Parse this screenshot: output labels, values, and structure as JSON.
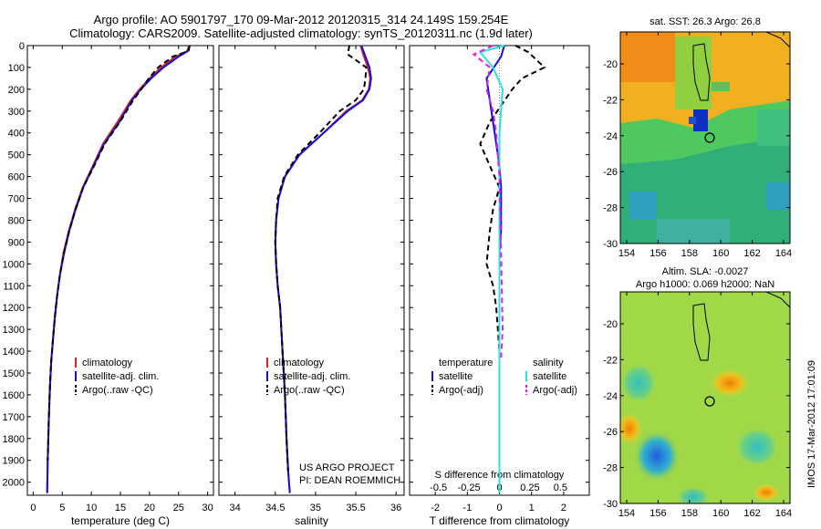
{
  "title": {
    "line1": "Argo profile: AO 5901797_170 09-Mar-2012 20120315_314 24.149S 159.254E",
    "line2": "Climatology: CARS2009. Satellite-adjusted climatology: synTS_20120311.nc (1.9d later)"
  },
  "colors": {
    "climatology": "#e02020",
    "satellite": "#1010e0",
    "argo": "#000000",
    "salinity_satellite": "#30e0e0",
    "salinity_argo": "#e020e0"
  },
  "y_axis": {
    "ticks": [
      "0",
      "100",
      "200",
      "300",
      "400",
      "500",
      "600",
      "700",
      "800",
      "900",
      "1000",
      "1100",
      "1200",
      "1300",
      "1400",
      "1500",
      "1600",
      "1700",
      "1800",
      "1900",
      "2000"
    ],
    "ylim": [
      0,
      2060
    ]
  },
  "chart_data": [
    {
      "type": "line",
      "xlabel": "temperature (deg C)",
      "xlim": [
        -1,
        31
      ],
      "xticks": [
        "0",
        "5",
        "10",
        "15",
        "20",
        "25",
        "30"
      ],
      "xtick_values": [
        0,
        5,
        10,
        15,
        20,
        25,
        30
      ],
      "legend": [
        "climatology",
        "satellite-adj. clim.",
        "Argo(..raw -QC)"
      ],
      "legend_location": "lower-center",
      "series": [
        {
          "name": "climatology",
          "color": "#e02020",
          "x": [
            26.8,
            26.5,
            24.5,
            22.0,
            20.0,
            18.3,
            16.8,
            14.5,
            12.0,
            10.3,
            8.5,
            7.2,
            6.1,
            5.2,
            4.6,
            4.1,
            3.7,
            3.4,
            3.1,
            2.9,
            2.7,
            2.5,
            2.4
          ],
          "y": [
            0,
            25,
            50,
            100,
            150,
            200,
            250,
            350,
            450,
            550,
            650,
            750,
            850,
            950,
            1050,
            1150,
            1250,
            1350,
            1450,
            1550,
            1700,
            1900,
            2050
          ]
        },
        {
          "name": "satellite-adj. clim.",
          "color": "#1010e0",
          "x": [
            26.9,
            26.6,
            25.0,
            22.4,
            20.3,
            18.5,
            17.0,
            14.8,
            12.2,
            10.4,
            8.6,
            7.3,
            6.2,
            5.3,
            4.6,
            4.1,
            3.7,
            3.4,
            3.1,
            2.9,
            2.7,
            2.5,
            2.4
          ],
          "y": [
            0,
            25,
            50,
            100,
            150,
            200,
            250,
            350,
            450,
            550,
            650,
            750,
            850,
            950,
            1050,
            1150,
            1250,
            1350,
            1450,
            1550,
            1700,
            1900,
            2050
          ]
        },
        {
          "name": "Argo(..raw -QC)",
          "color": "#000000",
          "x": [
            26.9,
            26.7,
            24.0,
            21.5,
            19.9,
            18.6,
            17.2,
            14.9,
            12.3,
            10.5,
            8.6,
            7.3,
            6.2,
            5.3,
            4.6,
            4.1,
            3.7,
            3.4,
            3.1,
            2.9,
            2.7,
            2.5
          ],
          "y": [
            0,
            25,
            50,
            100,
            150,
            200,
            250,
            350,
            450,
            550,
            650,
            750,
            850,
            950,
            1050,
            1150,
            1250,
            1350,
            1450,
            1550,
            1700,
            1900
          ]
        }
      ]
    },
    {
      "type": "line",
      "xlabel": "salinity",
      "xlim": [
        33.8,
        36.1
      ],
      "xticks": [
        "34",
        "34.5",
        "35",
        "35.5",
        "36"
      ],
      "xtick_values": [
        34,
        34.5,
        35,
        35.5,
        36
      ],
      "legend": [
        "climatology",
        "satellite-adj. clim.",
        "Argo(..raw -QC)"
      ],
      "legend_location": "lower-center",
      "annotation": [
        "US ARGO PROJECT",
        "PI: DEAN ROEMMICH"
      ],
      "series": [
        {
          "name": "climatology",
          "color": "#e02020",
          "x": [
            35.56,
            35.6,
            35.65,
            35.68,
            35.66,
            35.58,
            35.38,
            35.1,
            34.8,
            34.62,
            34.54,
            34.51,
            34.5,
            34.51,
            34.53,
            34.56,
            34.59,
            34.62,
            34.64,
            34.66,
            34.68
          ],
          "y": [
            0,
            50,
            100,
            150,
            200,
            250,
            300,
            400,
            500,
            600,
            700,
            800,
            900,
            1000,
            1100,
            1200,
            1400,
            1600,
            1800,
            1950,
            2050
          ]
        },
        {
          "name": "satellite-adj. clim.",
          "color": "#1010e0",
          "x": [
            35.57,
            35.62,
            35.67,
            35.69,
            35.67,
            35.59,
            35.4,
            35.1,
            34.8,
            34.62,
            34.54,
            34.51,
            34.5,
            34.51,
            34.53,
            34.56,
            34.59,
            34.62,
            34.64,
            34.66,
            34.68
          ],
          "y": [
            0,
            50,
            100,
            150,
            200,
            250,
            300,
            400,
            500,
            600,
            700,
            800,
            900,
            1000,
            1100,
            1200,
            1400,
            1600,
            1800,
            1950,
            2050
          ]
        },
        {
          "name": "Argo(..raw -QC)",
          "color": "#000000",
          "x": [
            35.42,
            35.4,
            35.63,
            35.62,
            35.6,
            35.5,
            35.3,
            35.05,
            34.78,
            34.61,
            34.53,
            34.51,
            34.5,
            34.51,
            34.53,
            34.56,
            34.59,
            34.62,
            34.64,
            34.66
          ],
          "y": [
            0,
            40,
            100,
            150,
            200,
            250,
            300,
            400,
            500,
            600,
            700,
            800,
            900,
            1000,
            1100,
            1200,
            1400,
            1600,
            1800,
            1950
          ]
        }
      ]
    },
    {
      "type": "line",
      "xlabel": "T difference from climatology",
      "xlabel_top": "S difference from climatology",
      "xlim": [
        -2.8,
        2.8
      ],
      "xticks": [
        "-2",
        "-1",
        "0",
        "1",
        "2"
      ],
      "xtick_values": [
        -2,
        -1,
        0,
        1,
        2
      ],
      "sticks": [
        "-0.5",
        "-0.25",
        "0",
        "0.25",
        "0.5"
      ],
      "stick_values": [
        -1.9,
        -0.95,
        0,
        0.95,
        1.9
      ],
      "legend": [
        "temperature",
        "satellite",
        "Argo(-adj)",
        "salinity",
        "satellite",
        "Argo(-adj)"
      ],
      "legend_location": "lower-center",
      "series": [
        {
          "name": "temperature satellite",
          "color": "#1010e0",
          "x": [
            0.15,
            0.05,
            -0.4,
            -0.3,
            -0.2,
            -0.1,
            0,
            0.05,
            0.05,
            0.05,
            0,
            0,
            0,
            0,
            0,
            0,
            0
          ],
          "y": [
            0,
            50,
            150,
            250,
            350,
            450,
            550,
            650,
            750,
            850,
            950,
            1100,
            1300,
            1500,
            1700,
            1900,
            2050
          ]
        },
        {
          "name": "temperature Argo(-adj)",
          "color": "#000000",
          "x": [
            0.5,
            0.9,
            1.4,
            0.7,
            0.4,
            -0.3,
            -0.6,
            -0.3,
            0,
            -0.2,
            -0.3,
            -0.4,
            -0.2,
            -0.1,
            0,
            0,
            0
          ],
          "y": [
            0,
            30,
            100,
            150,
            200,
            350,
            450,
            550,
            650,
            750,
            850,
            1000,
            1100,
            1200,
            1400,
            1600,
            1900
          ]
        },
        {
          "name": "salinity satellite",
          "color": "#30e0e0",
          "x": [
            0.15,
            -0.6,
            -0.2,
            0.1,
            0,
            0,
            0,
            0,
            0,
            0
          ],
          "y": [
            0,
            30,
            100,
            200,
            400,
            600,
            900,
            1200,
            1600,
            2050
          ]
        },
        {
          "name": "salinity Argo(-adj)",
          "color": "#e020e0",
          "x": [
            -0.2,
            -0.8,
            -0.3,
            -0.4,
            -0.2,
            -0.1,
            0,
            0.1,
            0.05
          ],
          "y": [
            0,
            40,
            100,
            200,
            300,
            400,
            600,
            1300,
            1430
          ]
        }
      ]
    },
    {
      "type": "heatmap",
      "title": "sat. SST: 26.3 Argo: 26.8",
      "xticks": [
        "154",
        "156",
        "158",
        "160",
        "162",
        "164"
      ],
      "yticks": [
        "-20",
        "-22",
        "-24",
        "-26",
        "-28",
        "-30"
      ]
    },
    {
      "type": "heatmap",
      "title": "Altim. SLA: -0.0027",
      "subtitle": "Argo h1000: 0.069 h2000: NaN",
      "xticks": [
        "154",
        "156",
        "158",
        "160",
        "162",
        "164"
      ],
      "yticks": [
        "-20",
        "-22",
        "-24",
        "-26",
        "-28",
        "-30"
      ]
    }
  ],
  "watermark": "IMOS 17-Mar-2012 17:01:09"
}
